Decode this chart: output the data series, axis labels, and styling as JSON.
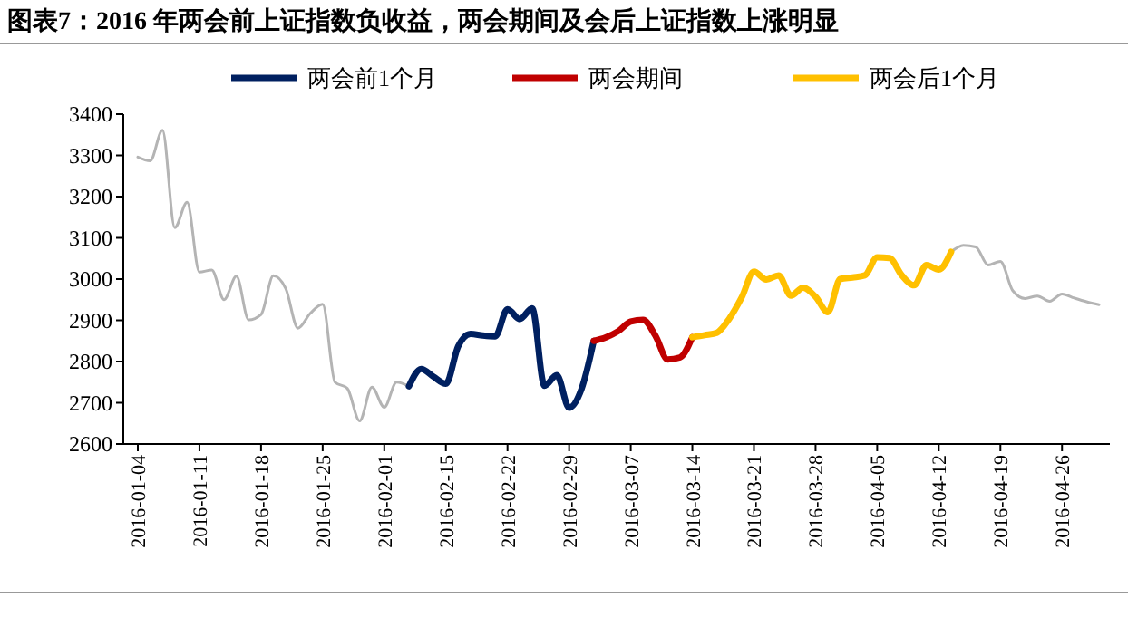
{
  "chart_data": {
    "type": "line",
    "title": "图表7：2016 年两会前上证指数负收益，两会期间及会后上证指数上涨明显",
    "categories": [
      "2016-01-04",
      null,
      null,
      null,
      null,
      "2016-01-11",
      null,
      null,
      null,
      null,
      "2016-01-18",
      null,
      null,
      null,
      null,
      "2016-01-25",
      null,
      null,
      null,
      null,
      "2016-02-01",
      null,
      null,
      null,
      null,
      "2016-02-15",
      null,
      null,
      null,
      null,
      "2016-02-22",
      null,
      null,
      null,
      null,
      "2016-02-29",
      null,
      null,
      null,
      null,
      "2016-03-07",
      null,
      null,
      null,
      null,
      "2016-03-14",
      null,
      null,
      null,
      null,
      "2016-03-21",
      null,
      null,
      null,
      null,
      "2016-03-28",
      null,
      null,
      null,
      null,
      "2016-04-05",
      null,
      null,
      null,
      null,
      "2016-04-12",
      null,
      null,
      null,
      null,
      "2016-04-19",
      null,
      null,
      null,
      null,
      "2016-04-26",
      null,
      null,
      null
    ],
    "series": [
      {
        "color": "#b4b4b4",
        "values": [
          3296,
          3287,
          3361,
          3125,
          3186,
          3017,
          3022,
          2950,
          3007,
          2901,
          2914,
          3008,
          2977,
          2881,
          2917,
          2939,
          2750,
          2735,
          2656,
          2738,
          2689,
          2750,
          2740,
          null,
          null,
          null,
          null,
          null,
          null,
          null,
          null,
          null,
          null,
          null,
          null,
          null,
          null,
          null,
          null,
          null,
          null,
          null,
          null,
          null,
          null,
          null,
          null,
          null,
          null,
          null,
          null,
          null,
          null,
          null,
          null,
          null,
          null,
          null,
          null,
          null,
          null,
          null,
          null,
          null,
          null,
          null,
          3066,
          3082,
          3078,
          3034,
          3043,
          2972,
          2953,
          2959,
          2946,
          2964,
          2954,
          2945,
          2938
        ]
      },
      {
        "name": "两会前1个月",
        "color": "#002060",
        "values": [
          null,
          null,
          null,
          null,
          null,
          null,
          null,
          null,
          null,
          null,
          null,
          null,
          null,
          null,
          null,
          null,
          null,
          null,
          null,
          null,
          null,
          null,
          2740,
          2782,
          2763,
          2746,
          2837,
          2867,
          2863,
          2861,
          2927,
          2903,
          2929,
          2741,
          2767,
          2688,
          2733,
          2850,
          null,
          null,
          null,
          null,
          null,
          null,
          null,
          null,
          null,
          null,
          null,
          null,
          null,
          null,
          null,
          null,
          null,
          null,
          null,
          null,
          null,
          null,
          null,
          null,
          null,
          null,
          null,
          null,
          null,
          null,
          null,
          null,
          null,
          null,
          null,
          null,
          null,
          null,
          null,
          null,
          null
        ]
      },
      {
        "name": "两会期间",
        "color": "#c00000",
        "values": [
          null,
          null,
          null,
          null,
          null,
          null,
          null,
          null,
          null,
          null,
          null,
          null,
          null,
          null,
          null,
          null,
          null,
          null,
          null,
          null,
          null,
          null,
          null,
          null,
          null,
          null,
          null,
          null,
          null,
          null,
          null,
          null,
          null,
          null,
          null,
          null,
          null,
          2850,
          2859,
          2874,
          2897,
          2901,
          2863,
          2805,
          2810,
          2859,
          null,
          null,
          null,
          null,
          null,
          null,
          null,
          null,
          null,
          null,
          null,
          null,
          null,
          null,
          null,
          null,
          null,
          null,
          null,
          null,
          null,
          null,
          null,
          null,
          null,
          null,
          null,
          null,
          null,
          null,
          null,
          null,
          null
        ]
      },
      {
        "name": "两会后1个月",
        "color": "#ffc000",
        "values": [
          null,
          null,
          null,
          null,
          null,
          null,
          null,
          null,
          null,
          null,
          null,
          null,
          null,
          null,
          null,
          null,
          null,
          null,
          null,
          null,
          null,
          null,
          null,
          null,
          null,
          null,
          null,
          null,
          null,
          null,
          null,
          null,
          null,
          null,
          null,
          null,
          null,
          null,
          null,
          null,
          null,
          null,
          null,
          null,
          null,
          2859,
          2864,
          2870,
          2904,
          2955,
          3018,
          2999,
          3009,
          2960,
          2979,
          2957,
          2920,
          3000,
          3004,
          3009,
          3053,
          3051,
          3009,
          2985,
          3034,
          3023,
          3066,
          null,
          null,
          null,
          null,
          null,
          null,
          null,
          null,
          null,
          null,
          null,
          null
        ]
      }
    ],
    "ylim": [
      2600,
      3400
    ],
    "yticks": [
      2600,
      2700,
      2800,
      2900,
      3000,
      3100,
      3200,
      3300,
      3400
    ],
    "legend": "top",
    "grid": false
  }
}
